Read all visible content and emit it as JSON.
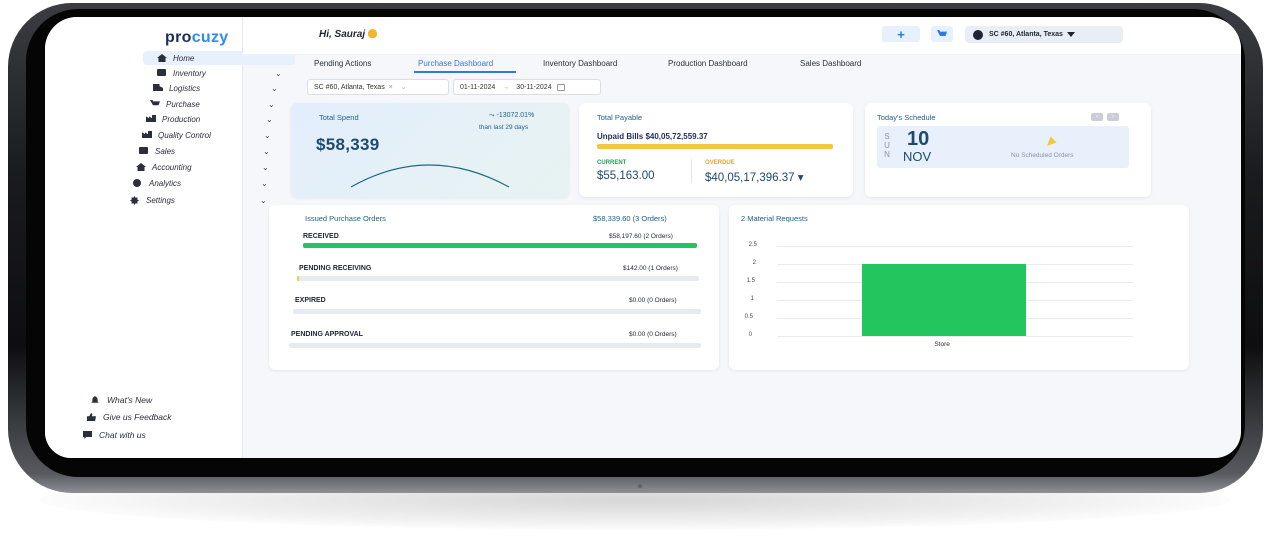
{
  "brand": {
    "part1": "pro",
    "part2": "cuzy"
  },
  "sidebar": {
    "items": [
      {
        "label": "Home",
        "icon": "home-icon"
      },
      {
        "label": "Inventory",
        "icon": "inventory-icon"
      },
      {
        "label": "Logistics",
        "icon": "truck-icon"
      },
      {
        "label": "Purchase",
        "icon": "cart-icon"
      },
      {
        "label": "Production",
        "icon": "factory-icon"
      },
      {
        "label": "Quality Control",
        "icon": "quality-icon"
      },
      {
        "label": "Sales",
        "icon": "sales-icon"
      },
      {
        "label": "Accounting",
        "icon": "accounting-icon"
      },
      {
        "label": "Analytics",
        "icon": "analytics-icon"
      },
      {
        "label": "Settings",
        "icon": "gear-icon"
      }
    ],
    "footer": [
      {
        "label": "What's New",
        "icon": "bell-icon"
      },
      {
        "label": "Give us Feedback",
        "icon": "thumbs-up-icon"
      },
      {
        "label": "Chat with us",
        "icon": "chat-icon"
      }
    ],
    "chevron": "⌄"
  },
  "header": {
    "greeting": "Hi, Sauraj",
    "plus": "+",
    "location": "SC #60, Atlanta, Texas"
  },
  "tabs": [
    "Pending Actions",
    "Purchase Dashboard",
    "Inventory Dashboard",
    "Production Dashboard",
    "Sales Dashboard"
  ],
  "filters": {
    "location": "SC #60, Atlanta, Texas",
    "clear": "×",
    "dropdown": "⌄",
    "start_date": "01-11-2024",
    "arrow": "→",
    "end_date": "30-11-2024"
  },
  "total_spend": {
    "title": "Total Spend",
    "value": "$58,339",
    "change": "-13072.01%",
    "change_sub": "than last 29 days"
  },
  "total_payable": {
    "title": "Total Payable",
    "unpaid": "Unpaid Bills $40,05,72,559.37",
    "current_label": "CURRENT",
    "current_value": "$55,163.00",
    "overdue_label": "OVERDUE",
    "overdue_value": "$40,05,17,396.37 ▾"
  },
  "schedule": {
    "title": "Today's Schedule",
    "day_letters": [
      "S",
      "U",
      "N"
    ],
    "day": "10",
    "month": "NOV",
    "empty": "No Scheduled Orders",
    "prev": "‹",
    "next": "›"
  },
  "issued_po": {
    "title": "Issued Purchase Orders",
    "total": "$58,339.60 (3 Orders)",
    "rows": [
      {
        "label": "RECEIVED",
        "amount": "$58,197.60 (2 Orders)",
        "fill": 1.0,
        "color": "#22c55e"
      },
      {
        "label": "PENDING RECEIVING",
        "amount": "$142.00 (1 Orders)",
        "fill": 0.004,
        "color": "#f2c744"
      },
      {
        "label": "EXPIRED",
        "amount": "$0.00 (0 Orders)",
        "fill": 0,
        "color": "#22c55e"
      },
      {
        "label": "PENDING APPROVAL",
        "amount": "$0.00 (0 Orders)",
        "fill": 0,
        "color": "#22c55e"
      }
    ]
  },
  "chart_data": {
    "type": "bar",
    "title": "2 Material Requests",
    "categories": [
      "Store"
    ],
    "values": [
      2
    ],
    "ylim": [
      0,
      2.5
    ],
    "yticks": [
      "2.5",
      "2",
      "1.5",
      "1",
      "0.5",
      "0"
    ],
    "color": "#22c55e",
    "grid": true
  }
}
